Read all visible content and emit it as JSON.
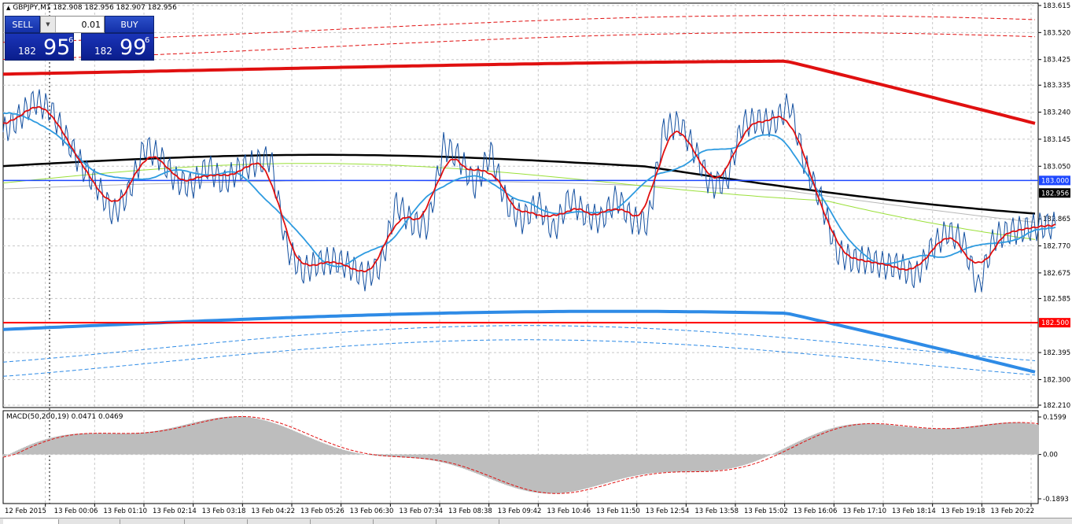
{
  "symbol_header": "GBPJPY,M1  182.908 182.956 182.907 182.956",
  "one_click": {
    "sell_label": "SELL",
    "buy_label": "BUY",
    "lot": "0.01",
    "sell_small": "182",
    "sell_big": "95",
    "sell_sup": "6",
    "buy_small": "182",
    "buy_big": "99",
    "buy_sup": "6"
  },
  "price_axis": {
    "ticks": [
      "183.615",
      "183.520",
      "183.425",
      "183.335",
      "183.240",
      "183.145",
      "183.050",
      "182.865",
      "182.770",
      "182.675",
      "182.585",
      "182.395",
      "182.300",
      "182.210"
    ],
    "tick_values": [
      183.615,
      183.52,
      183.425,
      183.335,
      183.24,
      183.145,
      183.05,
      182.865,
      182.77,
      182.675,
      182.585,
      182.395,
      182.3,
      182.21
    ],
    "range": [
      182.21,
      183.615
    ],
    "markers": [
      {
        "label": "183.000",
        "value": 183.0,
        "color": "#1e48ff",
        "text_color": "#ffffff"
      },
      {
        "label": "182.956",
        "value": 182.956,
        "color": "#000000",
        "text_color": "#ffffff"
      },
      {
        "label": "182.500",
        "value": 182.5,
        "color": "#ff0000",
        "text_color": "#ffffff"
      }
    ]
  },
  "time_axis": {
    "labels": [
      "12 Feb 2015",
      "13 Feb 00:06",
      "13 Feb 01:10",
      "13 Feb 02:14",
      "13 Feb 03:18",
      "13 Feb 04:22",
      "13 Feb 05:26",
      "13 Feb 06:30",
      "13 Feb 07:34",
      "13 Feb 08:38",
      "13 Feb 09:42",
      "13 Feb 10:46",
      "13 Feb 11:50",
      "13 Feb 12:54",
      "13 Feb 13:58",
      "13 Feb 15:02",
      "13 Feb 16:06",
      "13 Feb 17:10",
      "13 Feb 18:14",
      "13 Feb 19:18",
      "13 Feb 20:22"
    ]
  },
  "macd": {
    "label": "MACD(50,200,19) 0.0471 0.0469",
    "ticks": [
      "0.1599",
      "0.00",
      "-0.1893"
    ],
    "tick_values": [
      0.1599,
      0.0,
      -0.1893
    ]
  },
  "colors": {
    "price_line": "#1450a0",
    "ma_fast": "#e01010",
    "ma_mid": "#2e9be0",
    "ma_slow": "#9be03a",
    "ma_long": "#000000",
    "ma_gray": "#b8b8b8",
    "envelope_red": "#e01010",
    "envelope_blue": "#2e8be6",
    "macd_hist": "#bdbdbd",
    "macd_signal": "#e01010"
  },
  "chart_data": {
    "type": "line",
    "series": [
      {
        "name": "GBPJPY,M1",
        "x": [
          0,
          20,
          40,
          60,
          80,
          100,
          120,
          140,
          160,
          180,
          200,
          220,
          240,
          260,
          280,
          300,
          320,
          340,
          360,
          380,
          400,
          420,
          440,
          460,
          480,
          500,
          520,
          540,
          560,
          580,
          600,
          620,
          640,
          660,
          680,
          700,
          720,
          740,
          760,
          780,
          800,
          820,
          840,
          860,
          880,
          900,
          920,
          940,
          960,
          980,
          1000,
          1020,
          1040,
          1060,
          1080,
          1100,
          1120,
          1140,
          1160,
          1180,
          1200,
          1220,
          1240,
          1260,
          1280,
          1300,
          1320
        ],
        "y": [
          183.17,
          183.22,
          183.28,
          183.25,
          183.15,
          183.05,
          182.98,
          182.88,
          182.96,
          183.12,
          183.08,
          183.0,
          182.98,
          183.05,
          182.99,
          183.04,
          183.06,
          183.08,
          182.77,
          182.68,
          182.71,
          182.72,
          182.7,
          182.66,
          182.7,
          182.92,
          182.85,
          182.84,
          183.12,
          183.08,
          182.98,
          183.1,
          182.92,
          182.86,
          182.92,
          182.82,
          182.94,
          182.88,
          182.86,
          182.94,
          182.86,
          182.85,
          183.18,
          183.2,
          183.1,
          182.98,
          183.0,
          183.2,
          183.21,
          183.2,
          183.27,
          183.05,
          182.93,
          182.75,
          182.72,
          182.72,
          182.7,
          182.7,
          182.66,
          182.76,
          182.82,
          182.79,
          182.62,
          182.8,
          182.82,
          182.83,
          182.84
        ]
      }
    ]
  }
}
